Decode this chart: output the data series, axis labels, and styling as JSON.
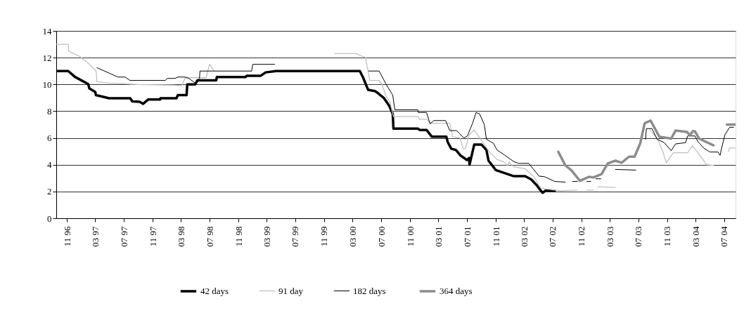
{
  "chart_data": {
    "type": "line",
    "xlim": [
      "1996-09-16",
      "2004-08-18"
    ],
    "ylim": [
      0,
      14
    ],
    "yticks": [
      0,
      2,
      4,
      6,
      8,
      10,
      12,
      14
    ],
    "xticks": [
      {
        "value": "1996-11-01",
        "label": "11 96"
      },
      {
        "value": "1997-03-01",
        "label": "03 97"
      },
      {
        "value": "1997-07-01",
        "label": "07 97"
      },
      {
        "value": "1997-11-01",
        "label": "11 97"
      },
      {
        "value": "1998-03-01",
        "label": "03 98"
      },
      {
        "value": "1998-07-01",
        "label": "07 98"
      },
      {
        "value": "1998-11-01",
        "label": "11 98"
      },
      {
        "value": "1999-03-01",
        "label": "03 99"
      },
      {
        "value": "1999-07-01",
        "label": "07 99"
      },
      {
        "value": "1999-11-01",
        "label": "11 99"
      },
      {
        "value": "2000-03-01",
        "label": "03 00"
      },
      {
        "value": "2000-07-01",
        "label": "07 00"
      },
      {
        "value": "2000-11-01",
        "label": "11 00"
      },
      {
        "value": "2001-03-01",
        "label": "03 01"
      },
      {
        "value": "2001-07-01",
        "label": "07 01"
      },
      {
        "value": "2001-11-01",
        "label": "11 01"
      },
      {
        "value": "2002-03-01",
        "label": "03 02"
      },
      {
        "value": "2002-07-01",
        "label": "07 02"
      },
      {
        "value": "2002-11-01",
        "label": "11 02"
      },
      {
        "value": "2003-03-01",
        "label": "03 03"
      },
      {
        "value": "2003-07-01",
        "label": "07 03"
      },
      {
        "value": "2003-11-01",
        "label": "11 03"
      },
      {
        "value": "2004-03-01",
        "label": "03 04"
      },
      {
        "value": "2004-07-01",
        "label": "07 04"
      }
    ],
    "grid": "y",
    "legend": "bottom",
    "line_style": "solid",
    "marker": "none",
    "series": [
      {
        "name": "42 days",
        "color": "#000000",
        "x": [
          "1996-09-16",
          "1996-11-06",
          "1996-12-05",
          "1997-01-30",
          "1997-02-04",
          "1997-03-01",
          "1997-03-04",
          "1997-04-29",
          "1997-07-28",
          "1997-08-06",
          "1997-09-06",
          "1997-09-21",
          "1997-10-12",
          "1997-12-02",
          "1997-12-04",
          "1998-02-10",
          "1998-02-16",
          "1998-03-25",
          "1998-03-28",
          "1998-05-01",
          "1998-05-10",
          "1998-07-29",
          "1998-08-01",
          "1998-12-01",
          "1998-12-06",
          "1999-02-04",
          "1999-02-25",
          "1999-04-10",
          "2000-04-01",
          "2000-04-15",
          "2000-05-06",
          "2000-06-04",
          "2000-06-13",
          "2000-07-13",
          "2000-08-04",
          "2000-08-19",
          "2000-08-22",
          "2000-12-04",
          "2000-12-12",
          "2001-01-10",
          "2001-02-01",
          "2001-04-04",
          "2001-04-10",
          "2001-04-25",
          "2001-05-15",
          "2001-06-03",
          "2001-07-01",
          "2001-07-10",
          "2001-07-12",
          "2001-08-01",
          "2001-09-01",
          "2001-09-22",
          "2001-10-01",
          "2001-11-01",
          "2001-12-28",
          "2002-01-15",
          "2002-03-06",
          "2002-04-01",
          "2002-04-25",
          "2002-05-10",
          "2002-05-19",
          "2002-06-04",
          "2002-07-10"
        ],
        "values": [
          11.0,
          11.0,
          10.56,
          10.03,
          9.7,
          9.44,
          9.2,
          8.97,
          8.97,
          8.73,
          8.7,
          8.55,
          8.87,
          8.87,
          8.97,
          8.97,
          9.2,
          9.2,
          10.0,
          10.0,
          10.3,
          10.3,
          10.55,
          10.55,
          10.65,
          10.65,
          10.9,
          11.0,
          11.0,
          10.5,
          9.6,
          9.5,
          9.4,
          8.97,
          8.4,
          7.8,
          6.7,
          6.7,
          6.6,
          6.6,
          6.1,
          6.1,
          5.7,
          5.2,
          5.1,
          4.7,
          4.35,
          4.5,
          4.0,
          5.5,
          5.5,
          5.1,
          4.3,
          3.6,
          3.26,
          3.15,
          3.15,
          2.9,
          2.45,
          2.1,
          1.9,
          2.1,
          2.05
        ]
      },
      {
        "name": "91 day",
        "color": "#c0c0c0",
        "x": [
          "1996-09-16",
          "1996-11-06",
          "1996-11-07",
          "1996-12-24",
          "1997-02-05",
          "1997-03-05",
          "1997-03-08",
          "1997-04-29",
          "1997-08-27",
          "1998-01-25",
          "1998-03-04",
          "1998-03-19",
          "1998-06-16",
          "1998-07-01",
          "1998-07-19",
          "1999-03-01",
          "1999-12-16",
          "2000-03-16",
          "2000-04-25",
          "2000-05-06",
          "2000-05-13",
          "2000-06-22",
          "2000-07-04",
          "2000-07-22",
          "2000-08-07",
          "2000-08-22",
          "2000-12-04",
          "2000-12-12",
          "2001-01-10",
          "2001-01-25",
          "2001-04-19",
          "2001-05-01",
          "2001-06-01",
          "2001-06-15",
          "2001-06-24",
          "2001-07-10",
          "2001-08-01",
          "2001-08-28",
          "2001-10-01",
          "2001-11-06",
          "2001-12-06",
          "2001-12-21",
          "2001-12-27",
          "2002-01-15",
          "2002-03-06",
          "2002-04-12",
          "2002-05-10",
          "2002-05-28",
          "2002-08-03",
          "2002-10-12",
          "2002-11-01",
          "2002-11-24",
          "2002-12-21",
          "2003-01-01",
          "2003-01-10",
          "2003-03-25",
          "2003-06-01",
          "2003-08-19",
          "2003-09-19",
          "2003-10-13",
          "2003-10-28",
          "2003-11-27",
          "2004-01-27",
          "2004-02-15",
          "2004-03-07",
          "2004-04-16",
          "2004-05-16",
          "2004-06-15",
          "2004-07-18",
          "2004-07-24",
          "2004-08-15"
        ],
        "values": [
          13.0,
          13.0,
          12.5,
          12.1,
          11.5,
          11.0,
          10.2,
          10.1,
          10.0,
          9.95,
          9.9,
          10.5,
          10.5,
          11.5,
          11.05,
          null,
          12.3,
          12.3,
          12.0,
          11.0,
          10.3,
          10.3,
          10.0,
          9.1,
          8.7,
          7.6,
          7.6,
          7.4,
          7.4,
          7.1,
          7.1,
          6.1,
          6.0,
          5.2,
          5.2,
          6.2,
          6.6,
          5.9,
          5.05,
          4.4,
          4.2,
          3.95,
          4.2,
          3.85,
          3.7,
          3.1,
          2.3,
          2.2,
          2.05,
          2.1,
          null,
          2.1,
          2.1,
          null,
          2.35,
          2.3,
          null,
          6.6,
          6.0,
          5.0,
          4.15,
          4.9,
          4.9,
          5.4,
          5.0,
          4.0,
          3.95,
          null,
          5.0,
          5.25,
          5.25
        ]
      },
      {
        "name": "182 days",
        "color": "#000000",
        "x": [
          "1997-03-08",
          "1997-06-06",
          "1997-07-06",
          "1997-07-27",
          "1997-12-25",
          "1998-01-01",
          "1998-02-04",
          "1998-02-16",
          "1998-03-19",
          "1998-04-04",
          "1998-05-01",
          "1998-05-19",
          "1998-05-21",
          "1998-12-27",
          "1999-01-01",
          "1999-04-04",
          "1999-10-01",
          "2000-05-09",
          "2000-06-22",
          "2000-07-22",
          "2000-08-19",
          "2000-08-28",
          "2000-12-04",
          "2000-12-06",
          "2001-01-10",
          "2001-01-25",
          "2001-02-10",
          "2001-04-01",
          "2001-04-19",
          "2001-05-18",
          "2001-06-18",
          "2001-07-03",
          "2001-07-25",
          "2001-08-09",
          "2001-08-24",
          "2001-09-13",
          "2001-09-22",
          "2001-10-22",
          "2001-11-06",
          "2001-12-06",
          "2002-01-15",
          "2002-02-06",
          "2002-03-21",
          "2002-05-04",
          "2002-05-28",
          "2002-07-10",
          "2002-08-24",
          "2002-09-06",
          "2002-09-24",
          "2002-10-15",
          "2002-10-30",
          "2002-11-24",
          "2002-12-10",
          "2002-12-22",
          "2003-01-01",
          "2003-01-22",
          "2003-02-05",
          "2003-03-25",
          "2003-06-20",
          "2003-07-10",
          "2003-08-01",
          "2003-08-04",
          "2003-08-28",
          "2003-09-19",
          "2003-10-19",
          "2003-11-18",
          "2003-12-06",
          "2004-01-18",
          "2004-01-27",
          "2004-02-27",
          "2004-03-12",
          "2004-04-04",
          "2004-05-01",
          "2004-06-04",
          "2004-06-13",
          "2004-06-19",
          "2004-07-04",
          "2004-07-24",
          "2004-08-10"
        ],
        "values": [
          11.25,
          10.55,
          10.55,
          10.3,
          10.3,
          10.45,
          10.45,
          10.55,
          10.55,
          10.45,
          10.1,
          10.45,
          11.0,
          11.0,
          11.5,
          11.5,
          null,
          11.0,
          11.0,
          10.0,
          9.2,
          8.1,
          8.1,
          7.9,
          7.9,
          7.05,
          7.3,
          7.3,
          6.55,
          6.55,
          6.0,
          6.15,
          7.1,
          7.9,
          7.8,
          7.0,
          5.9,
          5.6,
          5.1,
          4.75,
          4.25,
          4.1,
          4.1,
          3.15,
          3.1,
          2.75,
          2.7,
          null,
          2.75,
          2.75,
          null,
          2.75,
          2.75,
          null,
          2.95,
          2.95,
          null,
          3.65,
          3.6,
          null,
          5.9,
          6.7,
          6.7,
          5.9,
          5.65,
          5.05,
          5.55,
          5.65,
          6.15,
          6.15,
          5.7,
          5.25,
          4.95,
          4.95,
          4.7,
          5.2,
          6.25,
          6.8,
          6.8
        ]
      },
      {
        "name": "364 days",
        "color": "#8c8c8c",
        "x": [
          "2002-07-25",
          "2002-08-24",
          "2002-09-18",
          "2002-10-25",
          "2002-12-04",
          "2002-12-21",
          "2003-01-25",
          "2003-02-21",
          "2003-03-25",
          "2003-04-21",
          "2003-05-22",
          "2003-06-15",
          "2003-07-09",
          "2003-07-28",
          "2003-08-22",
          "2003-09-28",
          "2003-11-18",
          "2003-12-06",
          "2004-01-24",
          "2004-02-06",
          "2004-02-18",
          "2004-02-27",
          "2004-03-16",
          "2004-05-16",
          "2004-06-10",
          "2004-07-12",
          "2004-08-18"
        ],
        "values": [
          4.97,
          3.95,
          3.6,
          2.8,
          3.1,
          3.05,
          3.3,
          4.1,
          4.3,
          4.15,
          4.6,
          4.6,
          5.6,
          7.1,
          7.3,
          6.1,
          5.95,
          6.55,
          6.45,
          6.2,
          6.5,
          6.5,
          5.95,
          5.45,
          null,
          7.0,
          7.0
        ]
      }
    ]
  }
}
